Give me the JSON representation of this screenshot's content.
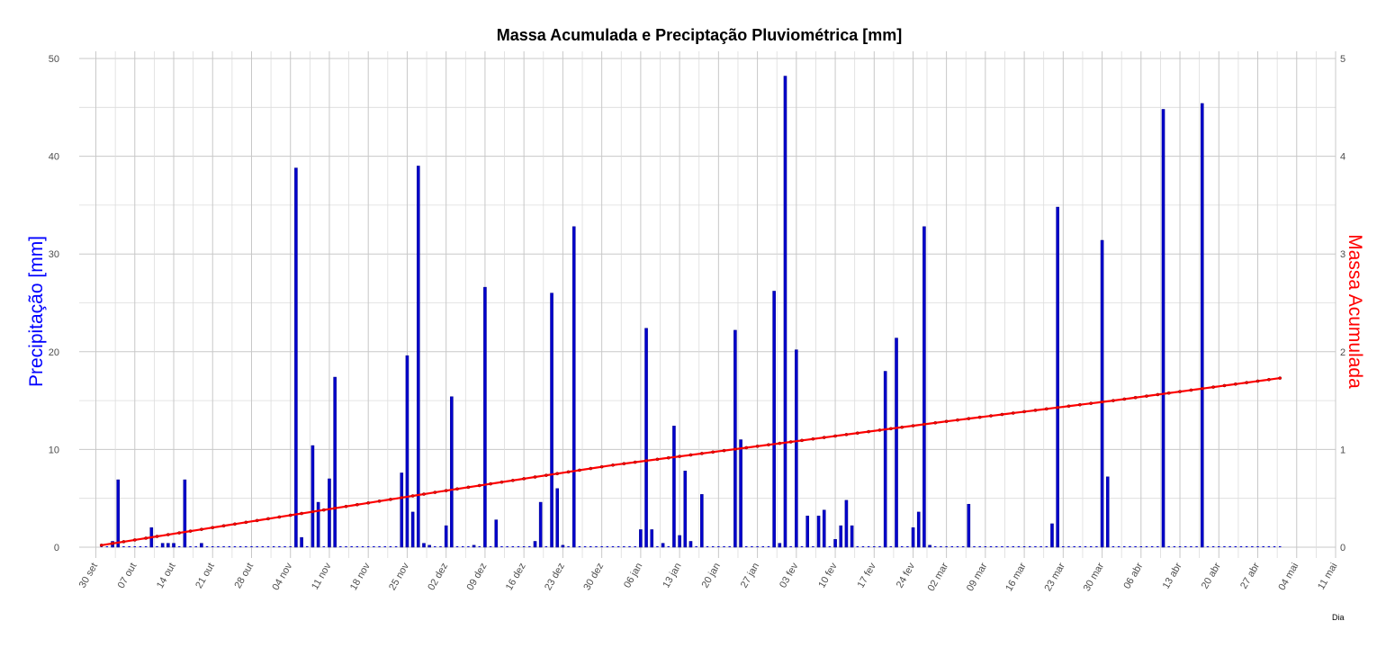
{
  "chart_data": {
    "type": "bar",
    "title": "Massa Acumulada e Preciptação Pluviométrica [mm]",
    "xlabel": "Dia",
    "ylabel_left": "Precipitação [mm]",
    "ylabel_right": "Massa Acumulada",
    "x_range": [
      "2024-09-27",
      "2025-05-11"
    ],
    "ylim_left": [
      0,
      50
    ],
    "ylim_right": [
      0,
      5
    ],
    "yticks_left": [
      "0",
      "10",
      "20",
      "30",
      "40",
      "50"
    ],
    "yticks_right": [
      "0",
      "1",
      "2",
      "3",
      "4",
      "5"
    ],
    "grid": true,
    "xticks": [
      {
        "date": "2024-09-30",
        "label": "30 set"
      },
      {
        "date": "2024-10-07",
        "label": "07 out"
      },
      {
        "date": "2024-10-14",
        "label": "14 out"
      },
      {
        "date": "2024-10-21",
        "label": "21 out"
      },
      {
        "date": "2024-10-28",
        "label": "28 out"
      },
      {
        "date": "2024-11-04",
        "label": "04 nov"
      },
      {
        "date": "2024-11-11",
        "label": "11 nov"
      },
      {
        "date": "2024-11-18",
        "label": "18 nov"
      },
      {
        "date": "2024-11-25",
        "label": "25 nov"
      },
      {
        "date": "2024-12-02",
        "label": "02 dez"
      },
      {
        "date": "2024-12-09",
        "label": "09 dez"
      },
      {
        "date": "2024-12-16",
        "label": "16 dez"
      },
      {
        "date": "2024-12-23",
        "label": "23 dez"
      },
      {
        "date": "2024-12-30",
        "label": "30 dez"
      },
      {
        "date": "2025-01-06",
        "label": "06 jan"
      },
      {
        "date": "2025-01-13",
        "label": "13 jan"
      },
      {
        "date": "2025-01-20",
        "label": "20 jan"
      },
      {
        "date": "2025-01-27",
        "label": "27 jan"
      },
      {
        "date": "2025-02-03",
        "label": "03 fev"
      },
      {
        "date": "2025-02-10",
        "label": "10 fev"
      },
      {
        "date": "2025-02-17",
        "label": "17 fev"
      },
      {
        "date": "2025-02-24",
        "label": "24 fev"
      },
      {
        "date": "2025-03-02",
        "label": "02 mar"
      },
      {
        "date": "2025-03-09",
        "label": "09 mar"
      },
      {
        "date": "2025-03-16",
        "label": "16 mar"
      },
      {
        "date": "2025-03-23",
        "label": "23 mar"
      },
      {
        "date": "2025-03-30",
        "label": "30 mar"
      },
      {
        "date": "2025-04-06",
        "label": "06 abr"
      },
      {
        "date": "2025-04-13",
        "label": "13 abr"
      },
      {
        "date": "2025-04-20",
        "label": "20 abr"
      },
      {
        "date": "2025-04-27",
        "label": "27 abr"
      },
      {
        "date": "2025-05-04",
        "label": "04 mai"
      },
      {
        "date": "2025-05-11",
        "label": "11 mai"
      }
    ],
    "series": [
      {
        "type": "bar",
        "axis": "left",
        "color": "#0000cc",
        "data": [
          {
            "date": "2024-10-03",
            "value": 0.6
          },
          {
            "date": "2024-10-04",
            "value": 6.9
          },
          {
            "date": "2024-10-10",
            "value": 2.0
          },
          {
            "date": "2024-10-12",
            "value": 0.4
          },
          {
            "date": "2024-10-13",
            "value": 0.4
          },
          {
            "date": "2024-10-14",
            "value": 0.4
          },
          {
            "date": "2024-10-16",
            "value": 6.9
          },
          {
            "date": "2024-10-19",
            "value": 0.4
          },
          {
            "date": "2024-11-05",
            "value": 38.8
          },
          {
            "date": "2024-11-06",
            "value": 1.0
          },
          {
            "date": "2024-11-08",
            "value": 10.4
          },
          {
            "date": "2024-11-09",
            "value": 4.6
          },
          {
            "date": "2024-11-11",
            "value": 7.0
          },
          {
            "date": "2024-11-12",
            "value": 17.4
          },
          {
            "date": "2024-11-24",
            "value": 7.6
          },
          {
            "date": "2024-11-25",
            "value": 19.6
          },
          {
            "date": "2024-11-26",
            "value": 3.6
          },
          {
            "date": "2024-11-27",
            "value": 39.0
          },
          {
            "date": "2024-11-28",
            "value": 0.4
          },
          {
            "date": "2024-11-29",
            "value": 0.2
          },
          {
            "date": "2024-12-02",
            "value": 2.2
          },
          {
            "date": "2024-12-03",
            "value": 15.4
          },
          {
            "date": "2024-12-07",
            "value": 0.2
          },
          {
            "date": "2024-12-09",
            "value": 26.6
          },
          {
            "date": "2024-12-11",
            "value": 2.8
          },
          {
            "date": "2024-12-18",
            "value": 0.6
          },
          {
            "date": "2024-12-19",
            "value": 4.6
          },
          {
            "date": "2024-12-21",
            "value": 26.0
          },
          {
            "date": "2024-12-22",
            "value": 6.0
          },
          {
            "date": "2024-12-23",
            "value": 0.2
          },
          {
            "date": "2024-12-25",
            "value": 32.8
          },
          {
            "date": "2025-01-06",
            "value": 1.8
          },
          {
            "date": "2025-01-07",
            "value": 22.4
          },
          {
            "date": "2025-01-08",
            "value": 1.8
          },
          {
            "date": "2025-01-10",
            "value": 0.4
          },
          {
            "date": "2025-01-12",
            "value": 12.4
          },
          {
            "date": "2025-01-13",
            "value": 1.2
          },
          {
            "date": "2025-01-14",
            "value": 7.8
          },
          {
            "date": "2025-01-15",
            "value": 0.6
          },
          {
            "date": "2025-01-17",
            "value": 5.4
          },
          {
            "date": "2025-01-23",
            "value": 22.2
          },
          {
            "date": "2025-01-24",
            "value": 11.0
          },
          {
            "date": "2025-01-30",
            "value": 26.2
          },
          {
            "date": "2025-01-31",
            "value": 0.4
          },
          {
            "date": "2025-02-01",
            "value": 48.2
          },
          {
            "date": "2025-02-03",
            "value": 20.2
          },
          {
            "date": "2025-02-05",
            "value": 3.2
          },
          {
            "date": "2025-02-07",
            "value": 3.2
          },
          {
            "date": "2025-02-08",
            "value": 3.8
          },
          {
            "date": "2025-02-10",
            "value": 0.8
          },
          {
            "date": "2025-02-11",
            "value": 2.2
          },
          {
            "date": "2025-02-12",
            "value": 4.8
          },
          {
            "date": "2025-02-13",
            "value": 2.2
          },
          {
            "date": "2025-02-19",
            "value": 18.0
          },
          {
            "date": "2025-02-21",
            "value": 21.4
          },
          {
            "date": "2025-02-24",
            "value": 2.0
          },
          {
            "date": "2025-02-25",
            "value": 3.6
          },
          {
            "date": "2025-02-26",
            "value": 32.8
          },
          {
            "date": "2025-02-27",
            "value": 0.2
          },
          {
            "date": "2025-03-06",
            "value": 4.4
          },
          {
            "date": "2025-03-21",
            "value": 2.4
          },
          {
            "date": "2025-03-22",
            "value": 34.8
          },
          {
            "date": "2025-03-30",
            "value": 31.4
          },
          {
            "date": "2025-03-31",
            "value": 7.2
          },
          {
            "date": "2025-04-10",
            "value": 44.8
          },
          {
            "date": "2025-04-17",
            "value": 45.4
          }
        ]
      },
      {
        "type": "line",
        "axis": "right",
        "color": "#ff0000",
        "points": [
          {
            "date": "2024-10-01",
            "value": 0.02
          },
          {
            "date": "2024-11-01",
            "value": 0.3
          },
          {
            "date": "2024-12-01",
            "value": 0.57
          },
          {
            "date": "2025-01-01",
            "value": 0.84
          },
          {
            "date": "2025-02-01",
            "value": 1.07
          },
          {
            "date": "2025-03-01",
            "value": 1.28
          },
          {
            "date": "2025-04-01",
            "value": 1.5
          },
          {
            "date": "2025-05-01",
            "value": 1.73
          }
        ]
      }
    ]
  }
}
